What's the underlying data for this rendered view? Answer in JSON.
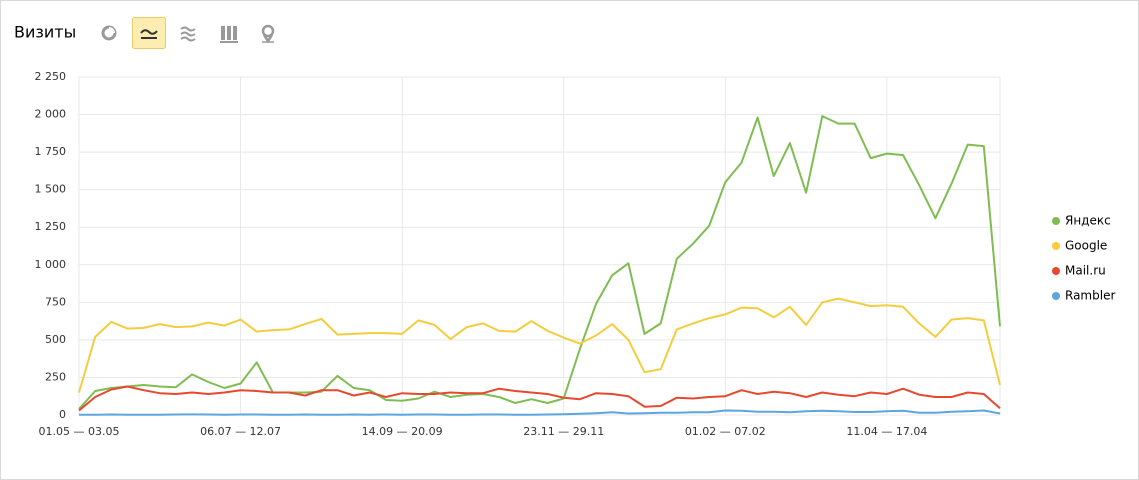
{
  "chart_data": {
    "type": "line",
    "title": "Визиты",
    "categories": [
      "01.05 — 03.05",
      null,
      null,
      null,
      null,
      null,
      null,
      null,
      null,
      null,
      "06.07 — 12.07",
      null,
      null,
      null,
      null,
      null,
      null,
      null,
      null,
      null,
      "14.09 — 20.09",
      null,
      null,
      null,
      null,
      null,
      null,
      null,
      null,
      null,
      "23.11 — 29.11",
      null,
      null,
      null,
      null,
      null,
      null,
      null,
      null,
      null,
      "01.02 — 07.02",
      null,
      null,
      null,
      null,
      null,
      null,
      null,
      null,
      null,
      "11.04 — 17.04",
      null,
      null,
      null,
      null,
      null,
      null,
      null
    ],
    "series": [
      {
        "name": "Яндекс",
        "color": "#7fbd52",
        "values": [
          40,
          160,
          180,
          190,
          200,
          190,
          185,
          270,
          220,
          180,
          210,
          350,
          150,
          150,
          150,
          155,
          260,
          180,
          165,
          100,
          95,
          110,
          155,
          120,
          135,
          140,
          120,
          80,
          105,
          80,
          110,
          440,
          740,
          930,
          1010,
          540,
          610,
          1040,
          1140,
          1260,
          1550,
          1680,
          1980,
          1590,
          1810,
          1480,
          1990,
          1940,
          1940,
          1710,
          1740,
          1730,
          1530,
          1310,
          1540,
          1800,
          1790,
          590
        ]
      },
      {
        "name": "Google",
        "color": "#f3cd3e",
        "values": [
          150,
          520,
          620,
          575,
          580,
          605,
          585,
          590,
          615,
          595,
          635,
          555,
          565,
          570,
          605,
          640,
          535,
          540,
          545,
          545,
          540,
          630,
          600,
          505,
          585,
          610,
          560,
          555,
          625,
          560,
          515,
          475,
          530,
          605,
          500,
          285,
          305,
          570,
          610,
          645,
          670,
          715,
          710,
          650,
          720,
          600,
          750,
          775,
          750,
          725,
          730,
          720,
          610,
          520,
          635,
          645,
          630,
          200
        ]
      },
      {
        "name": "Mail.ru",
        "color": "#e5492f",
        "values": [
          30,
          120,
          170,
          190,
          165,
          145,
          140,
          150,
          140,
          150,
          165,
          160,
          150,
          150,
          130,
          165,
          165,
          130,
          150,
          120,
          145,
          140,
          140,
          150,
          145,
          145,
          175,
          160,
          150,
          140,
          115,
          105,
          145,
          140,
          125,
          55,
          60,
          115,
          110,
          120,
          125,
          165,
          140,
          155,
          145,
          120,
          150,
          135,
          125,
          150,
          140,
          175,
          135,
          120,
          120,
          150,
          140,
          45
        ]
      },
      {
        "name": "Rambler",
        "color": "#5ba6df",
        "values": [
          2,
          2,
          3,
          2,
          2,
          2,
          3,
          4,
          3,
          2,
          3,
          3,
          2,
          2,
          3,
          2,
          2,
          3,
          2,
          3,
          2,
          3,
          3,
          2,
          2,
          3,
          3,
          2,
          2,
          3,
          5,
          8,
          12,
          18,
          10,
          12,
          15,
          15,
          18,
          18,
          30,
          28,
          22,
          22,
          18,
          25,
          28,
          25,
          20,
          20,
          25,
          28,
          15,
          15,
          22,
          25,
          30,
          10
        ]
      }
    ],
    "ylim": [
      0,
      2250
    ],
    "yticks": [
      0,
      250,
      500,
      750,
      {
        "value": 1000,
        "label": "1 000"
      },
      {
        "value": 1250,
        "label": "1 250"
      },
      {
        "value": 1500,
        "label": "1 500"
      },
      {
        "value": 1750,
        "label": "1 750"
      },
      {
        "value": 2000,
        "label": "2 000"
      },
      {
        "value": 2250,
        "label": "2 250"
      }
    ],
    "grid": true
  }
}
